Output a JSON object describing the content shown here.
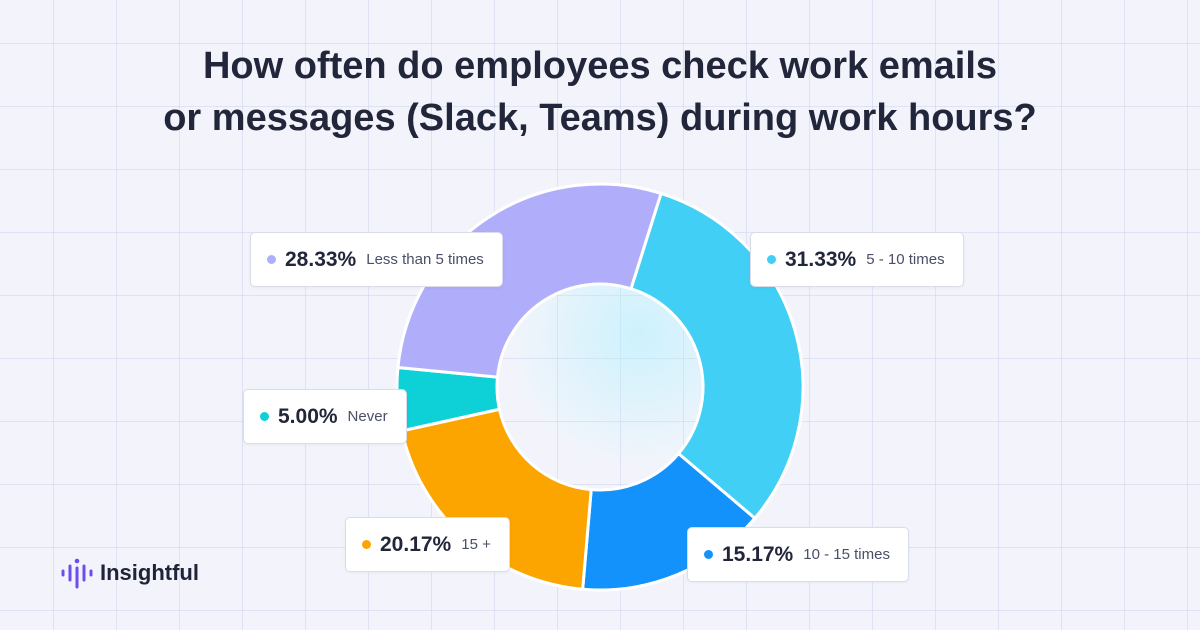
{
  "chart_data": {
    "type": "pie",
    "title_lines": [
      "How often do employees check work emails",
      "or messages (Slack, Teams) during work hours?"
    ],
    "slices": [
      {
        "label": "5 - 10 times",
        "value": 31.33,
        "display": "31.33%",
        "color": "#41cff5"
      },
      {
        "label": "10 - 15 times",
        "value": 15.17,
        "display": "15.17%",
        "color": "#1492fb"
      },
      {
        "label": "15 +",
        "value": 20.17,
        "display": "20.17%",
        "color": "#fca400"
      },
      {
        "label": "Never",
        "value": 5.0,
        "display": "5.00%",
        "color": "#0ed1d8"
      },
      {
        "label": "Less than 5 times",
        "value": 28.33,
        "display": "28.33%",
        "color": "#b0aefb"
      }
    ]
  },
  "brand": {
    "name": "Insightful",
    "logo_color": "#6c4bf0"
  }
}
